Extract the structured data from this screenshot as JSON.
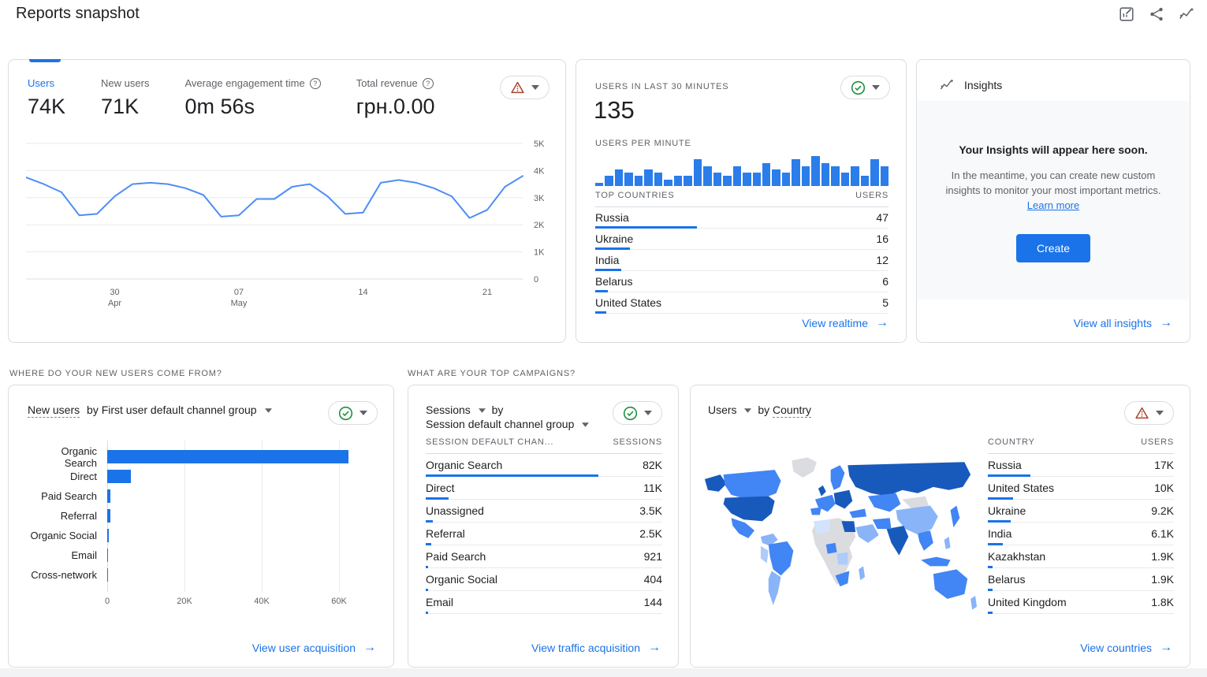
{
  "page": {
    "title": "Reports snapshot"
  },
  "colors": {
    "accent": "#1a73e8",
    "text": "#202124",
    "muted": "#5f6368",
    "grid": "#e8eaed",
    "border": "#dadce0",
    "line": "#4e8df6",
    "bar": "#1a73e8",
    "spark": "#2b7de9",
    "green": "#1e8e3e",
    "warn": "#a8442e",
    "body_bg": "#f8f9fa"
  },
  "header_icons": [
    {
      "name": "customize-report-icon"
    },
    {
      "name": "share-icon"
    },
    {
      "name": "insights-icon"
    }
  ],
  "overview": {
    "metrics": [
      {
        "label": "Users",
        "value": "74K",
        "selected": true
      },
      {
        "label": "New users",
        "value": "71K"
      },
      {
        "label": "Average engagement time",
        "value": "0m 56s",
        "help": true
      },
      {
        "label": "Total revenue",
        "value": "грн.0.00",
        "help": true
      }
    ],
    "status": "warning"
  },
  "realtime": {
    "title": "USERS IN LAST 30 MINUTES",
    "value": "135",
    "spark_label": "USERS PER MINUTE",
    "status": "ok",
    "link": "View realtime"
  },
  "insights": {
    "title": "Insights",
    "headline": "Your Insights will appear here soon.",
    "body": "In the meantime, you can create new custom insights to monitor your most important metrics.",
    "learn_more": "Learn more",
    "create": "Create",
    "link": "View all insights"
  },
  "section_titles": {
    "acquisition": "WHERE DO YOUR NEW USERS COME FROM?",
    "campaigns": "WHAT ARE YOUR TOP CAMPAIGNS?"
  },
  "acquisition_card": {
    "metric": "New users",
    "rest": "by First user default channel group",
    "status": "ok",
    "link": "View user acquisition"
  },
  "campaigns_card": {
    "metric": "Sessions",
    "mid": "by",
    "dim": "Session default channel group",
    "status": "ok",
    "link": "View traffic acquisition"
  },
  "map_card": {
    "metric": "Users",
    "mid": "by",
    "dim": "Country",
    "status": "warning",
    "link": "View countries"
  },
  "tables": {
    "realtime_countries": {
      "headers": [
        "TOP COUNTRIES",
        "USERS"
      ],
      "rows": [
        [
          "Russia",
          "47",
          0.348
        ],
        [
          "Ukraine",
          "16",
          0.119
        ],
        [
          "India",
          "12",
          0.089
        ],
        [
          "Belarus",
          "6",
          0.044
        ],
        [
          "United States",
          "5",
          0.037
        ]
      ]
    },
    "sessions_by_channel": {
      "headers": [
        "SESSION DEFAULT CHAN...",
        "SESSIONS"
      ],
      "rows": [
        [
          "Organic Search",
          "82K",
          0.73
        ],
        [
          "Direct",
          "11K",
          0.098
        ],
        [
          "Unassigned",
          "3.5K",
          0.031
        ],
        [
          "Referral",
          "2.5K",
          0.022
        ],
        [
          "Paid Search",
          "921",
          0.008
        ],
        [
          "Organic Social",
          "404",
          0.004
        ],
        [
          "Email",
          "144",
          0.002
        ]
      ]
    },
    "users_by_country": {
      "headers": [
        "COUNTRY",
        "USERS"
      ],
      "rows": [
        [
          "Russia",
          "17K",
          0.23
        ],
        [
          "United States",
          "10K",
          0.135
        ],
        [
          "Ukraine",
          "9.2K",
          0.124
        ],
        [
          "India",
          "6.1K",
          0.082
        ],
        [
          "Kazakhstan",
          "1.9K",
          0.026
        ],
        [
          "Belarus",
          "1.9K",
          0.026
        ],
        [
          "United Kingdom",
          "1.8K",
          0.024
        ]
      ]
    }
  },
  "chart_data": [
    {
      "id": "users-over-time",
      "type": "line",
      "title": "Users",
      "series": [
        {
          "name": "Users",
          "values": [
            3750,
            3500,
            3200,
            2350,
            2400,
            3050,
            3500,
            3550,
            3500,
            3350,
            3100,
            2300,
            2350,
            2950,
            2950,
            3400,
            3500,
            3050,
            2400,
            2450,
            3550,
            3650,
            3550,
            3350,
            3050,
            2250,
            2550,
            3400,
            3800
          ]
        }
      ],
      "x_ticks": [
        {
          "index": 5,
          "line1": "30",
          "line2": "Apr"
        },
        {
          "index": 12,
          "line1": "07",
          "line2": "May"
        },
        {
          "index": 19,
          "line1": "14"
        },
        {
          "index": 26,
          "line1": "21"
        }
      ],
      "ylim": [
        0,
        5000
      ],
      "y_ticks": [
        "0",
        "1K",
        "2K",
        "3K",
        "4K",
        "5K"
      ],
      "grid": "horizontal",
      "legend": "none"
    },
    {
      "id": "users-per-minute",
      "type": "bar",
      "title": "Users per minute",
      "values": [
        1,
        3,
        5,
        4,
        3,
        5,
        4,
        2,
        3,
        3,
        8,
        6,
        4,
        3,
        6,
        4,
        4,
        7,
        5,
        4,
        8,
        6,
        9,
        7,
        6,
        4,
        6,
        3,
        8,
        6
      ],
      "ylim": [
        0,
        10
      ]
    },
    {
      "id": "new-users-by-channel",
      "type": "bar",
      "orientation": "horizontal",
      "title": "New users by First user default channel group",
      "categories": [
        "Organic Search",
        "Direct",
        "Paid Search",
        "Referral",
        "Organic Social",
        "Email",
        "Cross-network"
      ],
      "values": [
        62500,
        6200,
        900,
        900,
        400,
        150,
        30
      ],
      "x_ticks": [
        {
          "value": 0,
          "label": "0"
        },
        {
          "value": 20000,
          "label": "20K"
        },
        {
          "value": 40000,
          "label": "40K"
        },
        {
          "value": 60000,
          "label": "60K"
        }
      ],
      "xlim": [
        0,
        72000
      ],
      "grid": "vertical"
    }
  ],
  "map_palette": {
    "dark": "#185abc",
    "med": "#4285f4",
    "light": "#8ab4f8",
    "lighter": "#aecbfa",
    "pale": "#d2e3fc",
    "none": "#dadce0"
  }
}
